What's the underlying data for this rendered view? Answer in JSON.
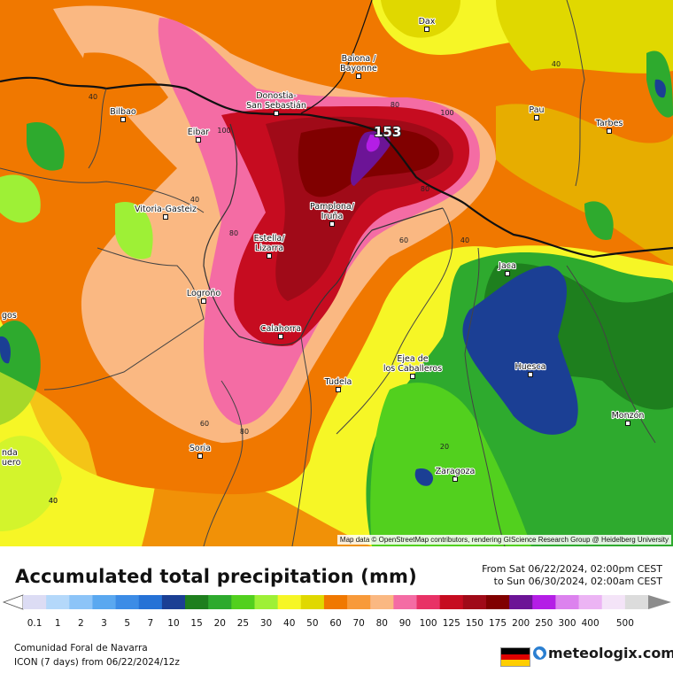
{
  "map": {
    "max_label": "153",
    "attribution": "Map data © OpenStreetMap contributors, rendering GIScience Research Group @ Heidelberg University",
    "cities": [
      {
        "name": "Dax",
        "lines": [
          "Dax"
        ]
      },
      {
        "name": "Baiona / Bayonne",
        "lines": [
          "Baiona /",
          "Bayonne"
        ]
      },
      {
        "name": "Donostia-San Sebastián",
        "lines": [
          "Donostia-",
          "San Sebastián"
        ]
      },
      {
        "name": "Bilbao",
        "lines": [
          "Bilbao"
        ]
      },
      {
        "name": "Eibar",
        "lines": [
          "Eibar"
        ]
      },
      {
        "name": "Pau",
        "lines": [
          "Pau"
        ]
      },
      {
        "name": "Tarbes",
        "lines": [
          "Tarbes"
        ]
      },
      {
        "name": "Vitoria-Gasteiz",
        "lines": [
          "Vitoria-Gasteiz"
        ]
      },
      {
        "name": "Pamplona/Iruña",
        "lines": [
          "Pamplona/",
          "Iruña"
        ]
      },
      {
        "name": "Estella/Lizarra",
        "lines": [
          "Estella/",
          "Lizarra"
        ]
      },
      {
        "name": "Jaca",
        "lines": [
          "Jaca"
        ]
      },
      {
        "name": "Logroño",
        "lines": [
          "Logroño"
        ]
      },
      {
        "name": "Calahorra",
        "lines": [
          "Calahorra"
        ]
      },
      {
        "name": "Ejea de los Caballeros",
        "lines": [
          "Ejea de",
          "los Caballeros"
        ]
      },
      {
        "name": "Huesca",
        "lines": [
          "Huesca"
        ]
      },
      {
        "name": "Tudela",
        "lines": [
          "Tudela"
        ]
      },
      {
        "name": "Monzón",
        "lines": [
          "Monzón"
        ]
      },
      {
        "name": "Soria",
        "lines": [
          "Soria"
        ]
      },
      {
        "name": "Zaragoza",
        "lines": [
          "Zaragoza"
        ]
      },
      {
        "name": "gos",
        "lines": [
          "gos"
        ]
      },
      {
        "name": "nda uero",
        "lines": [
          "nda",
          "uero"
        ]
      }
    ],
    "contour_labels": [
      "40",
      "40",
      "40",
      "40",
      "100",
      "80",
      "100",
      "80",
      "80",
      "60",
      "40",
      "60",
      "80",
      "20",
      "40"
    ]
  },
  "header": {
    "title": "Accumulated total precipitation (mm)",
    "period_from": "From Sat 06/22/2024, 02:00pm CEST",
    "period_to": "to Sun 06/30/2024, 02:00am CEST"
  },
  "legend": {
    "values": [
      "0.1",
      "1",
      "2",
      "3",
      "5",
      "7",
      "10",
      "15",
      "20",
      "25",
      "30",
      "40",
      "50",
      "60",
      "70",
      "80",
      "90",
      "100",
      "125",
      "150",
      "175",
      "200",
      "250",
      "300",
      "400",
      "500"
    ],
    "colors": [
      "#dcdcf4",
      "#b4d8fa",
      "#8cc4f8",
      "#5aa8f0",
      "#3c8ce6",
      "#2672d6",
      "#1b3f94",
      "#1e7f1e",
      "#2eaa2e",
      "#52d01e",
      "#9ef036",
      "#f6f626",
      "#e0d800",
      "#f07800",
      "#f89a3a",
      "#fab882",
      "#f46ca4",
      "#e83266",
      "#c60c20",
      "#a00a18",
      "#800000",
      "#6c1496",
      "#b41ee6",
      "#dc82ee",
      "#ecb4f4",
      "#f4e4f8",
      "#dcdcdc"
    ]
  },
  "footer": {
    "region": "Comunidad Foral de Navarra",
    "model": "ICON (7 days) from 06/22/2024/12z",
    "brand": "meteologix.com"
  }
}
